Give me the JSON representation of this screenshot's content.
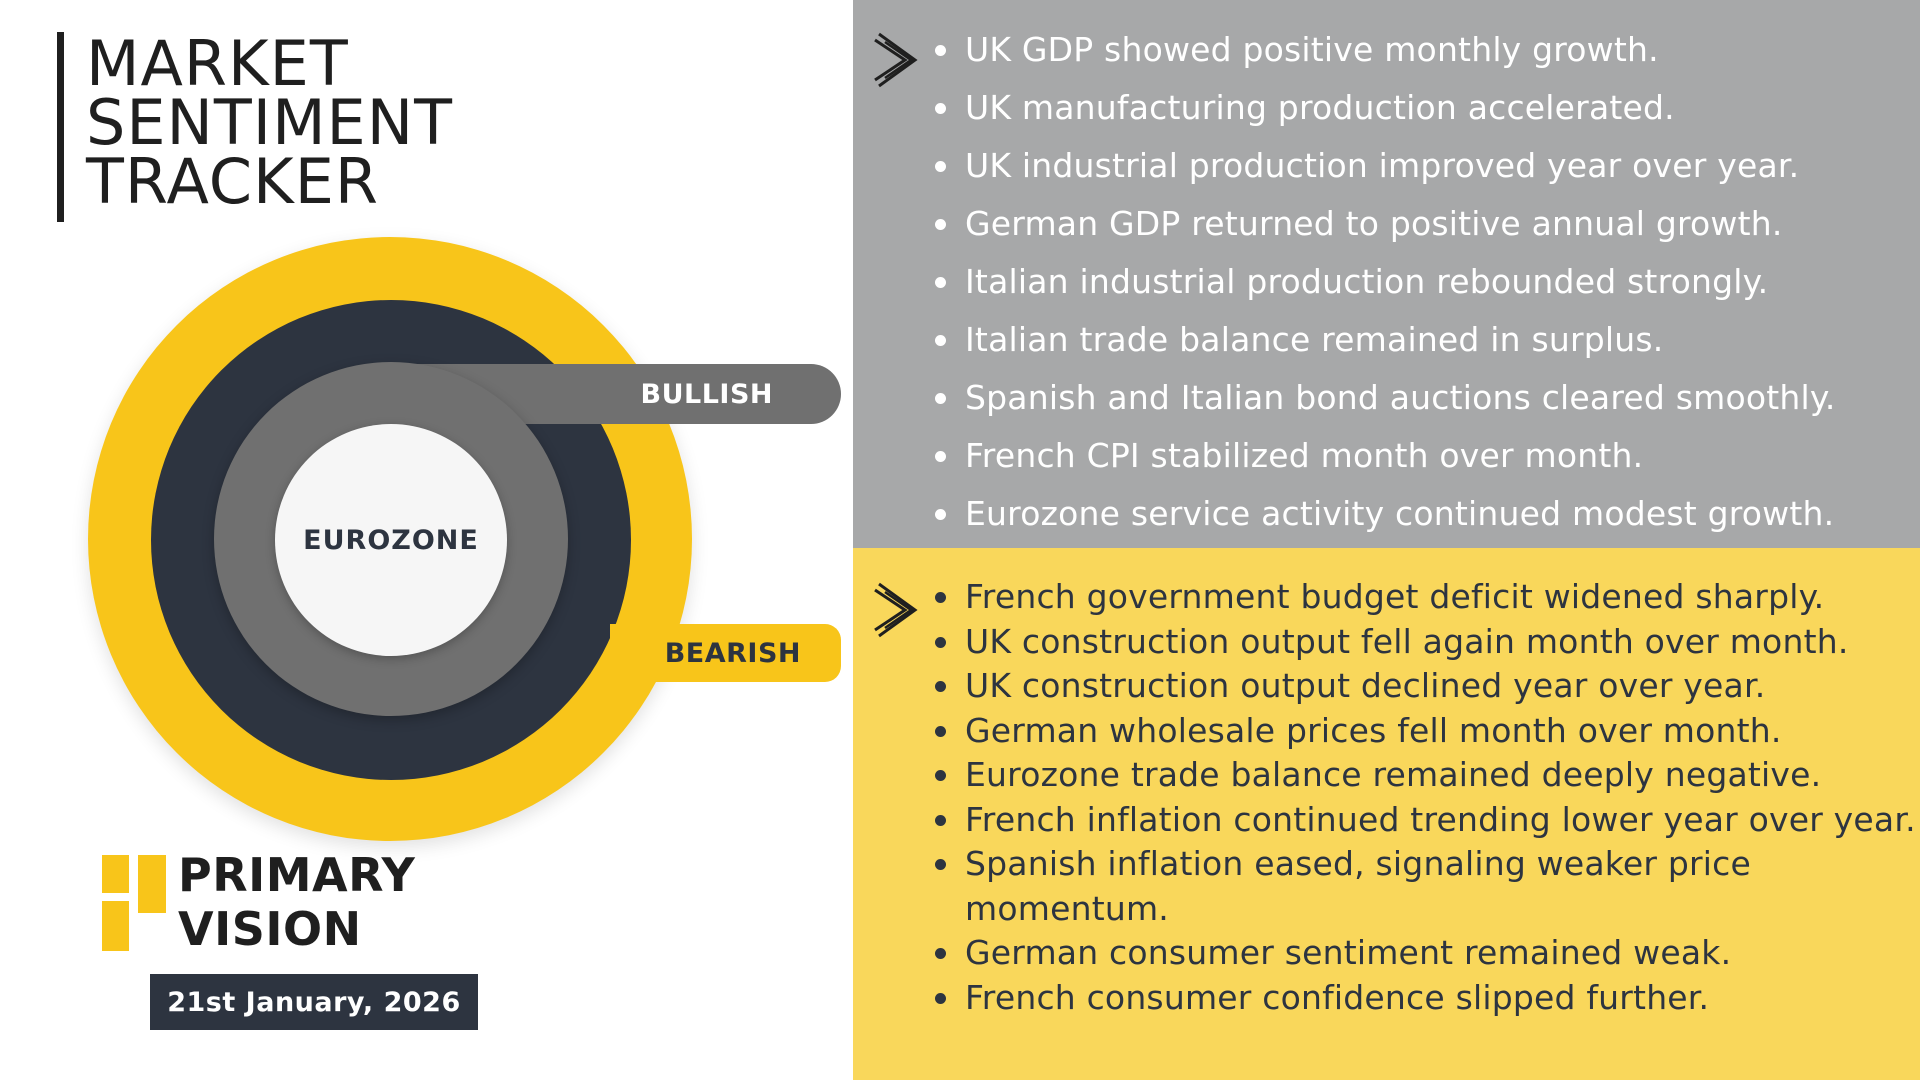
{
  "header": {
    "title_lines": [
      "MARKET",
      "SENTIMENT",
      "TRACKER"
    ]
  },
  "dial": {
    "center_label": "EUROZONE",
    "bullish_label": "BULLISH",
    "bearish_label": "BEARISH"
  },
  "brand": {
    "name_lines": [
      "PRIMARY",
      "VISION"
    ],
    "date": "21st January, 2026"
  },
  "colors": {
    "accent_yellow": "#f8c51a",
    "dark_navy": "#2d3440",
    "mid_gray": "#707070",
    "bullish_panel": "#a7a8a9",
    "bearish_panel": "#f9d75b"
  },
  "bullish": {
    "items": [
      "UK GDP showed positive monthly growth.",
      "UK manufacturing production accelerated.",
      "UK industrial production improved year over year.",
      "German GDP returned to positive annual growth.",
      "Italian industrial production rebounded strongly.",
      "Italian trade balance remained in surplus.",
      "Spanish and Italian bond auctions cleared smoothly.",
      "French CPI stabilized month over month.",
      "Eurozone service activity continued modest growth."
    ]
  },
  "bearish": {
    "items": [
      "French government budget deficit widened sharply.",
      "UK construction output fell again month over month.",
      "UK construction output declined year over year.",
      "German wholesale prices fell month over month.",
      "Eurozone trade balance remained deeply negative.",
      "French inflation continued trending lower year over year.",
      "Spanish inflation eased, signaling weaker price momentum.",
      "German consumer sentiment remained weak.",
      "French consumer confidence slipped further."
    ]
  }
}
